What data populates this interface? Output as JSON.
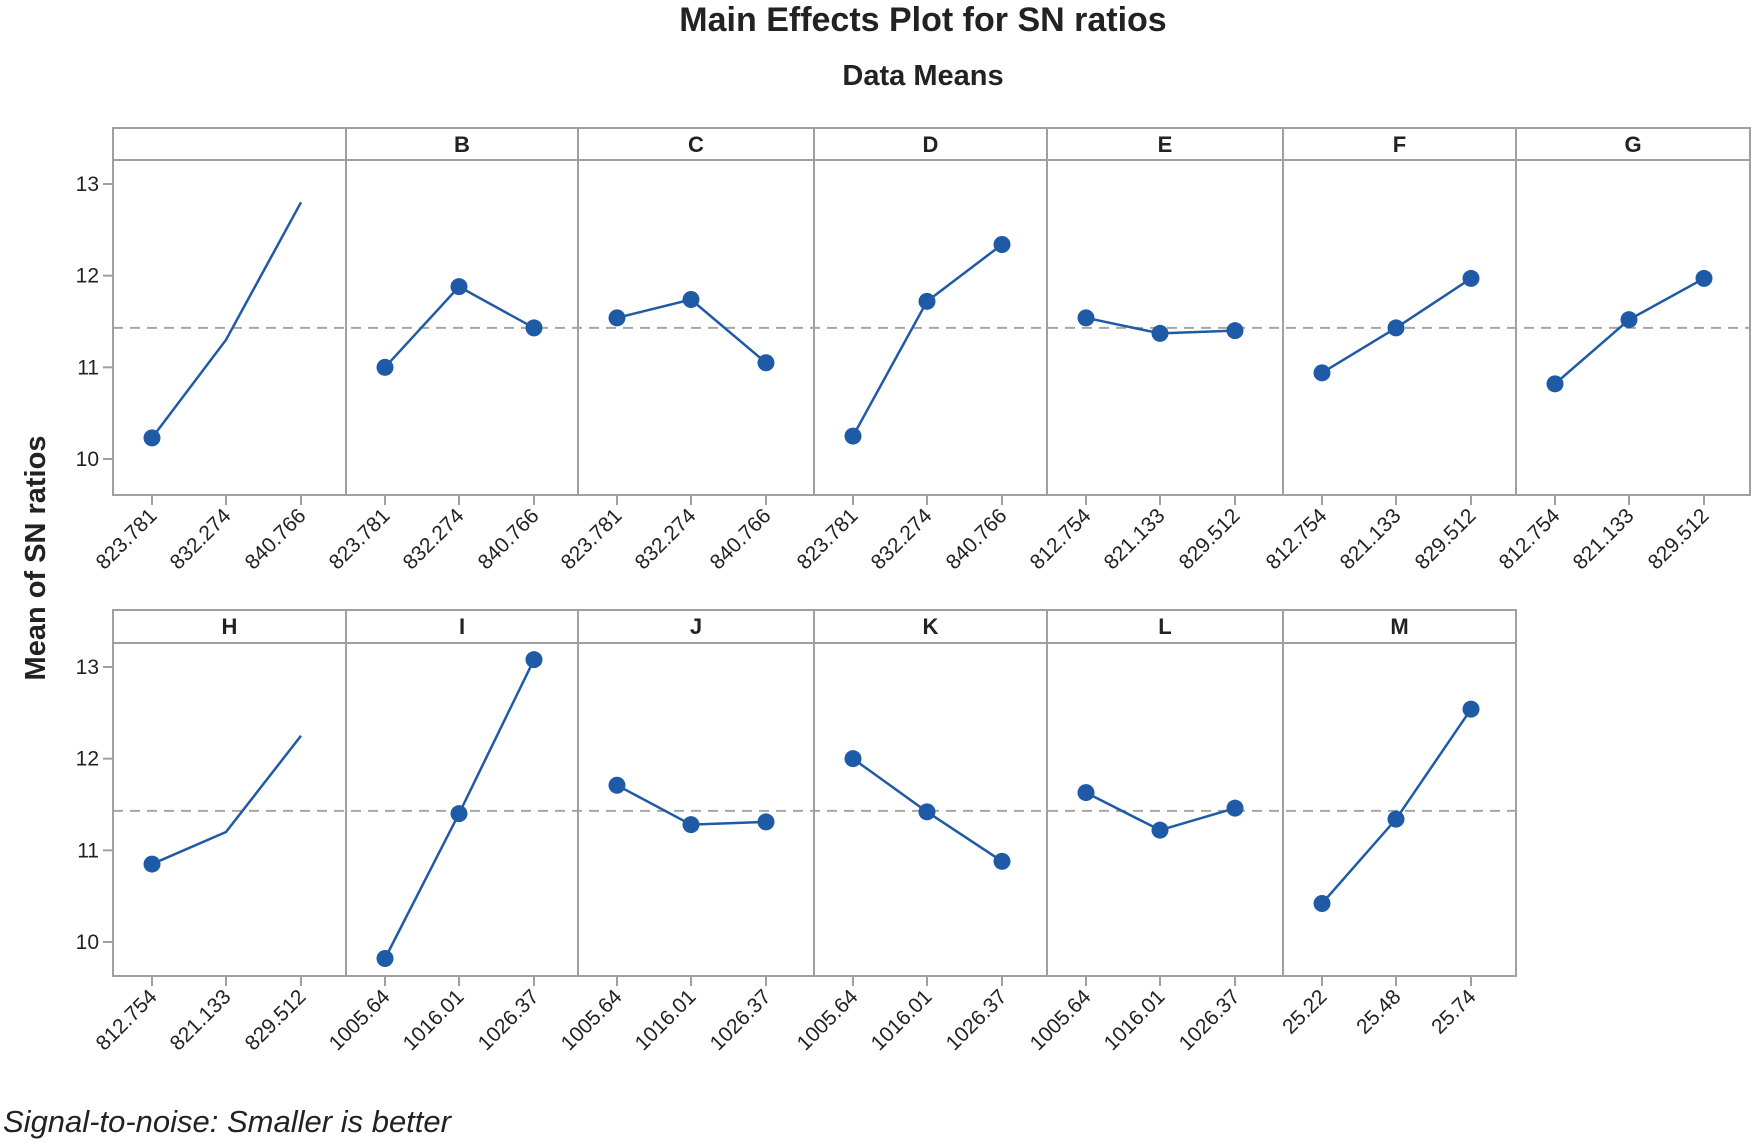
{
  "chart_data": {
    "type": "line",
    "title": "Main Effects Plot for SN ratios",
    "subtitle": "Data Means",
    "ylabel": "Mean of SN ratios",
    "footnote": "Signal-to-noise: Smaller is better",
    "ylim": [
      9.6,
      13.3
    ],
    "yticks": [
      "10",
      "11",
      "12",
      "13"
    ],
    "reference_mean": 11.43,
    "grid": false,
    "colors": {
      "series": "#1f5aa6",
      "reference": "#a6a6a6",
      "frame": "#a0a0a0"
    },
    "panels": [
      {
        "label": "",
        "levels": [
          "823.781",
          "832.274",
          "840.766"
        ],
        "values": [
          10.23,
          11.3,
          12.8
        ],
        "markers": [
          true,
          false,
          false
        ]
      },
      {
        "label": "B",
        "levels": [
          "823.781",
          "832.274",
          "840.766"
        ],
        "values": [
          11.0,
          11.88,
          11.43
        ],
        "markers": [
          true,
          true,
          true
        ]
      },
      {
        "label": "C",
        "levels": [
          "823.781",
          "832.274",
          "840.766"
        ],
        "values": [
          11.54,
          11.74,
          11.05
        ],
        "markers": [
          true,
          true,
          true
        ]
      },
      {
        "label": "D",
        "levels": [
          "823.781",
          "832.274",
          "840.766"
        ],
        "values": [
          10.25,
          11.72,
          12.34
        ],
        "markers": [
          true,
          true,
          true
        ]
      },
      {
        "label": "E",
        "levels": [
          "812.754",
          "821.133",
          "829.512"
        ],
        "values": [
          11.54,
          11.37,
          11.4
        ],
        "markers": [
          true,
          true,
          true
        ]
      },
      {
        "label": "F",
        "levels": [
          "812.754",
          "821.133",
          "829.512"
        ],
        "values": [
          10.94,
          11.43,
          11.97
        ],
        "markers": [
          true,
          true,
          true
        ]
      },
      {
        "label": "G",
        "levels": [
          "812.754",
          "821.133",
          "829.512"
        ],
        "values": [
          10.82,
          11.52,
          11.97
        ],
        "markers": [
          true,
          true,
          true
        ]
      },
      {
        "label": "H",
        "levels": [
          "812.754",
          "821.133",
          "829.512"
        ],
        "values": [
          10.85,
          11.2,
          12.25
        ],
        "markers": [
          true,
          false,
          false
        ]
      },
      {
        "label": "I",
        "levels": [
          "1005.64",
          "1016.01",
          "1026.37"
        ],
        "values": [
          9.82,
          11.4,
          13.08
        ],
        "markers": [
          true,
          true,
          true
        ]
      },
      {
        "label": "J",
        "levels": [
          "1005.64",
          "1016.01",
          "1026.37"
        ],
        "values": [
          11.71,
          11.28,
          11.31
        ],
        "markers": [
          true,
          true,
          true
        ]
      },
      {
        "label": "K",
        "levels": [
          "1005.64",
          "1016.01",
          "1026.37"
        ],
        "values": [
          12.0,
          11.42,
          10.88
        ],
        "markers": [
          true,
          true,
          true
        ]
      },
      {
        "label": "L",
        "levels": [
          "1005.64",
          "1016.01",
          "1026.37"
        ],
        "values": [
          11.63,
          11.22,
          11.46
        ],
        "markers": [
          true,
          true,
          true
        ]
      },
      {
        "label": "M",
        "levels": [
          "25.22",
          "25.48",
          "25.74"
        ],
        "values": [
          10.42,
          11.34,
          12.54
        ],
        "markers": [
          true,
          true,
          true
        ]
      }
    ]
  }
}
